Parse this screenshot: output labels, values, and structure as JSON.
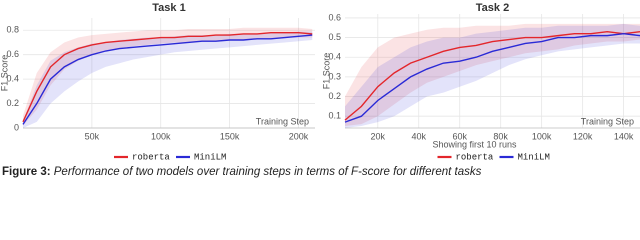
{
  "chart_data": [
    {
      "type": "line",
      "title": "Task 1",
      "y_label": "F1 Score",
      "x_label": "Training Step",
      "x": [
        0,
        10000,
        20000,
        30000,
        40000,
        50000,
        60000,
        70000,
        80000,
        90000,
        100000,
        110000,
        120000,
        130000,
        140000,
        150000,
        160000,
        170000,
        180000,
        190000,
        200000,
        210000
      ],
      "series": [
        {
          "name": "roberta",
          "color": "#e3262b",
          "values": [
            0.05,
            0.3,
            0.5,
            0.6,
            0.65,
            0.68,
            0.7,
            0.71,
            0.72,
            0.73,
            0.74,
            0.74,
            0.75,
            0.75,
            0.76,
            0.76,
            0.77,
            0.77,
            0.78,
            0.78,
            0.78,
            0.77
          ],
          "upper": [
            0.1,
            0.45,
            0.62,
            0.7,
            0.74,
            0.76,
            0.77,
            0.78,
            0.79,
            0.8,
            0.8,
            0.8,
            0.81,
            0.81,
            0.81,
            0.81,
            0.82,
            0.82,
            0.82,
            0.82,
            0.82,
            0.81
          ],
          "lower": [
            0.02,
            0.15,
            0.35,
            0.48,
            0.55,
            0.6,
            0.63,
            0.65,
            0.67,
            0.68,
            0.69,
            0.7,
            0.7,
            0.71,
            0.71,
            0.72,
            0.72,
            0.73,
            0.73,
            0.74,
            0.74,
            0.74
          ]
        },
        {
          "name": "MiniLM",
          "color": "#2a2ad6",
          "values": [
            0.03,
            0.2,
            0.4,
            0.5,
            0.56,
            0.6,
            0.63,
            0.65,
            0.66,
            0.67,
            0.68,
            0.69,
            0.7,
            0.71,
            0.71,
            0.72,
            0.72,
            0.73,
            0.73,
            0.74,
            0.75,
            0.76
          ],
          "upper": [
            0.06,
            0.35,
            0.55,
            0.62,
            0.66,
            0.69,
            0.7,
            0.72,
            0.73,
            0.74,
            0.74,
            0.75,
            0.76,
            0.76,
            0.76,
            0.77,
            0.77,
            0.77,
            0.78,
            0.78,
            0.79,
            0.79
          ],
          "lower": [
            0.0,
            0.05,
            0.2,
            0.3,
            0.38,
            0.45,
            0.5,
            0.53,
            0.56,
            0.58,
            0.6,
            0.62,
            0.63,
            0.64,
            0.65,
            0.66,
            0.67,
            0.68,
            0.69,
            0.7,
            0.71,
            0.72
          ]
        }
      ],
      "xlim": [
        0,
        212000
      ],
      "ylim": [
        0,
        0.9
      ],
      "xticks": [
        {
          "value": 50000,
          "label": "50k"
        },
        {
          "value": 100000,
          "label": "100k"
        },
        {
          "value": 150000,
          "label": "150k"
        },
        {
          "value": 200000,
          "label": "200k"
        }
      ],
      "yticks": [
        0,
        0.2,
        0.4,
        0.6,
        0.8
      ],
      "grid": true,
      "legend": "bottom"
    },
    {
      "type": "line",
      "title": "Task 2",
      "y_label": "F1 Score",
      "x_label": "Training Step",
      "annotation": "Showing first 10 runs",
      "x": [
        4000,
        12000,
        20000,
        28000,
        36000,
        44000,
        52000,
        60000,
        68000,
        76000,
        84000,
        92000,
        100000,
        108000,
        116000,
        124000,
        132000,
        140000,
        148000
      ],
      "series": [
        {
          "name": "roberta",
          "color": "#e3262b",
          "values": [
            0.08,
            0.15,
            0.25,
            0.32,
            0.37,
            0.4,
            0.43,
            0.45,
            0.46,
            0.48,
            0.49,
            0.5,
            0.5,
            0.51,
            0.52,
            0.52,
            0.53,
            0.52,
            0.53
          ],
          "upper": [
            0.2,
            0.35,
            0.45,
            0.5,
            0.52,
            0.54,
            0.55,
            0.55,
            0.56,
            0.56,
            0.56,
            0.57,
            0.57,
            0.57,
            0.57,
            0.57,
            0.57,
            0.57,
            0.57
          ],
          "lower": [
            0.05,
            0.06,
            0.1,
            0.16,
            0.22,
            0.27,
            0.3,
            0.33,
            0.36,
            0.38,
            0.4,
            0.42,
            0.43,
            0.44,
            0.46,
            0.47,
            0.48,
            0.48,
            0.49
          ]
        },
        {
          "name": "MiniLM",
          "color": "#2a2ad6",
          "values": [
            0.07,
            0.1,
            0.18,
            0.24,
            0.3,
            0.34,
            0.37,
            0.38,
            0.4,
            0.43,
            0.45,
            0.47,
            0.48,
            0.5,
            0.5,
            0.51,
            0.51,
            0.52,
            0.51
          ],
          "upper": [
            0.15,
            0.25,
            0.35,
            0.4,
            0.45,
            0.48,
            0.5,
            0.5,
            0.52,
            0.53,
            0.54,
            0.55,
            0.55,
            0.56,
            0.56,
            0.56,
            0.56,
            0.57,
            0.56
          ],
          "lower": [
            0.04,
            0.05,
            0.07,
            0.1,
            0.15,
            0.2,
            0.22,
            0.25,
            0.28,
            0.32,
            0.36,
            0.39,
            0.41,
            0.43,
            0.44,
            0.45,
            0.46,
            0.47,
            0.47
          ]
        }
      ],
      "xlim": [
        4000,
        148000
      ],
      "ylim": [
        0.04,
        0.62
      ],
      "xticks": [
        {
          "value": 20000,
          "label": "20k"
        },
        {
          "value": 40000,
          "label": "40k"
        },
        {
          "value": 60000,
          "label": "60k"
        },
        {
          "value": 80000,
          "label": "80k"
        },
        {
          "value": 100000,
          "label": "100k"
        },
        {
          "value": 120000,
          "label": "120k"
        },
        {
          "value": 140000,
          "label": "140k"
        }
      ],
      "yticks": [
        0.1,
        0.2,
        0.3,
        0.4,
        0.5,
        0.6
      ],
      "grid": true,
      "legend": "bottom"
    }
  ],
  "caption": {
    "label": "Figure 3:",
    "text": "Performance of two models over training steps in terms of F-score for different tasks"
  }
}
